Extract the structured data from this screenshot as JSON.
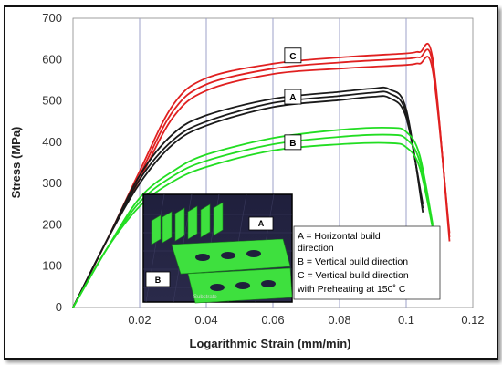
{
  "chart_data": {
    "type": "line",
    "title": "",
    "xlabel": "Logarithmic Strain (mm/min)",
    "ylabel": "Stress (MPa)",
    "xlim": [
      0,
      0.12
    ],
    "ylim": [
      0,
      700
    ],
    "x_ticks": [
      "0.02",
      "0.04",
      "0.06",
      "0.08",
      "0.1",
      "0.12"
    ],
    "y_ticks": [
      "0",
      "100",
      "200",
      "300",
      "400",
      "500",
      "600",
      "700"
    ],
    "grid": "vertical",
    "groups": [
      {
        "label": "C",
        "color": "#e02020",
        "series": [
          {
            "x": [
              0,
              0.01,
              0.02,
              0.03,
              0.04,
              0.06,
              0.08,
              0.1,
              0.104,
              0.108,
              0.113
            ],
            "y": [
              0,
              160,
              330,
              490,
              555,
              590,
              605,
              615,
              618,
              600,
              160
            ]
          },
          {
            "x": [
              0,
              0.01,
              0.02,
              0.03,
              0.04,
              0.06,
              0.08,
              0.1,
              0.104,
              0.108,
              0.113
            ],
            "y": [
              0,
              160,
              320,
              475,
              540,
              578,
              593,
              602,
              605,
              588,
              170
            ]
          },
          {
            "x": [
              0,
              0.01,
              0.02,
              0.03,
              0.04,
              0.06,
              0.08,
              0.1,
              0.104,
              0.108,
              0.113
            ],
            "y": [
              0,
              160,
              310,
              460,
              525,
              565,
              578,
              587,
              590,
              572,
              180
            ]
          }
        ]
      },
      {
        "label": "A",
        "color": "#1a1a1a",
        "series": [
          {
            "x": [
              0,
              0.01,
              0.02,
              0.03,
              0.04,
              0.06,
              0.08,
              0.09,
              0.095,
              0.1,
              0.105
            ],
            "y": [
              0,
              160,
              320,
              420,
              465,
              505,
              522,
              530,
              528,
              480,
              230
            ]
          },
          {
            "x": [
              0,
              0.01,
              0.02,
              0.03,
              0.04,
              0.06,
              0.08,
              0.09,
              0.095,
              0.1,
              0.105
            ],
            "y": [
              0,
              160,
              310,
              405,
              450,
              495,
              512,
              520,
              518,
              470,
              240
            ]
          },
          {
            "x": [
              0,
              0.01,
              0.02,
              0.03,
              0.04,
              0.06,
              0.08,
              0.09,
              0.095,
              0.1,
              0.105
            ],
            "y": [
              0,
              160,
              300,
              395,
              440,
              485,
              502,
              510,
              507,
              460,
              250
            ]
          }
        ]
      },
      {
        "label": "B",
        "color": "#22dd22",
        "series": [
          {
            "x": [
              0,
              0.01,
              0.02,
              0.03,
              0.04,
              0.06,
              0.08,
              0.095,
              0.1,
              0.104,
              0.108
            ],
            "y": [
              0,
              140,
              265,
              330,
              370,
              410,
              430,
              435,
              425,
              370,
              200
            ]
          },
          {
            "x": [
              0,
              0.01,
              0.02,
              0.03,
              0.04,
              0.06,
              0.08,
              0.095,
              0.1,
              0.104,
              0.108
            ],
            "y": [
              0,
              140,
              255,
              318,
              355,
              395,
              413,
              418,
              408,
              355,
              195
            ]
          },
          {
            "x": [
              0,
              0.01,
              0.02,
              0.03,
              0.04,
              0.06,
              0.08,
              0.095,
              0.1,
              0.104,
              0.108
            ],
            "y": [
              0,
              140,
              245,
              305,
              340,
              380,
              395,
              398,
              388,
              340,
              190
            ]
          }
        ]
      }
    ],
    "curve_labels": [
      {
        "text": "C",
        "x": 0.066,
        "y": 610
      },
      {
        "text": "A",
        "x": 0.066,
        "y": 510
      },
      {
        "text": "B",
        "x": 0.066,
        "y": 400
      }
    ],
    "legend": {
      "placement": "lower-right",
      "lines": [
        "A =  Horizontal  build",
        "direction",
        "B =  Vertical build direction",
        "C =  Vertical build direction",
        "with Preheating at 150˚ C"
      ]
    },
    "inset": {
      "description_labels": [
        "A",
        "B"
      ],
      "caption": "Substrate"
    }
  }
}
